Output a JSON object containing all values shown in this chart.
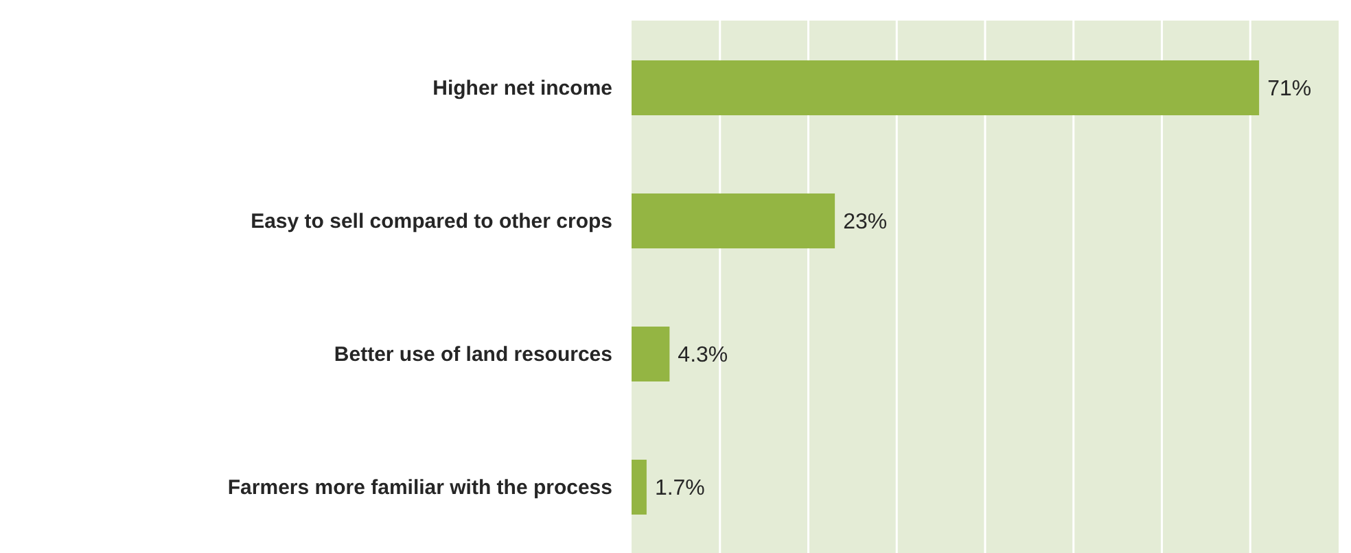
{
  "chart_data": {
    "type": "bar",
    "orientation": "horizontal",
    "categories": [
      "Higher net income",
      "Easy to sell compared to other crops",
      "Better use of land resources",
      "Farmers more familiar with the process"
    ],
    "values": [
      71,
      23,
      4.3,
      1.7
    ],
    "value_labels": [
      "71%",
      "23%",
      "4.3%",
      "1.7%"
    ],
    "color": "#94b543",
    "xlim": [
      0,
      80
    ],
    "xticks": [
      {
        "value": 10,
        "label": null
      },
      {
        "value": 20,
        "label": null
      },
      {
        "value": 30,
        "label": null
      },
      {
        "value": 40,
        "label": null
      },
      {
        "value": 50,
        "label": null
      },
      {
        "value": 60,
        "label": null
      },
      {
        "value": 70,
        "label": null
      }
    ],
    "grid": "x",
    "tick_labels": "y"
  }
}
